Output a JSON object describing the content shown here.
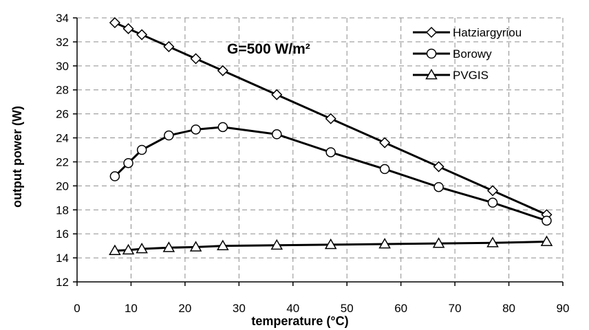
{
  "chart_data": {
    "type": "line",
    "title": "",
    "annotation": "G=500 W/m²",
    "xlabel": "temperature (°C)",
    "ylabel": "output power (W)",
    "xlim": [
      0,
      90
    ],
    "ylim": [
      12,
      34
    ],
    "xticks": [
      0,
      10,
      20,
      30,
      40,
      50,
      60,
      70,
      80,
      90
    ],
    "yticks": [
      12,
      14,
      16,
      18,
      20,
      22,
      24,
      26,
      28,
      30,
      32,
      34
    ],
    "grid": true,
    "legend_position": "top-right",
    "series": [
      {
        "name": "Hatziargyriou",
        "marker": "diamond",
        "x": [
          7,
          9.5,
          12,
          17,
          22,
          27,
          37,
          47,
          57,
          67,
          77,
          87
        ],
        "y": [
          33.6,
          33.1,
          32.6,
          31.6,
          30.6,
          29.6,
          27.6,
          25.6,
          23.6,
          21.6,
          19.6,
          17.6
        ]
      },
      {
        "name": "Borowy",
        "marker": "circle",
        "x": [
          7,
          9.5,
          12,
          17,
          22,
          27,
          37,
          47,
          57,
          67,
          77,
          87
        ],
        "y": [
          20.8,
          21.9,
          23.0,
          24.2,
          24.7,
          24.9,
          24.3,
          22.8,
          21.4,
          19.9,
          18.6,
          17.1
        ]
      },
      {
        "name": "PVGIS",
        "marker": "triangle",
        "x": [
          7,
          9.5,
          12,
          17,
          22,
          27,
          37,
          47,
          57,
          67,
          77,
          87
        ],
        "y": [
          14.6,
          14.65,
          14.75,
          14.85,
          14.9,
          15.0,
          15.05,
          15.1,
          15.15,
          15.2,
          15.25,
          15.35
        ]
      }
    ]
  }
}
